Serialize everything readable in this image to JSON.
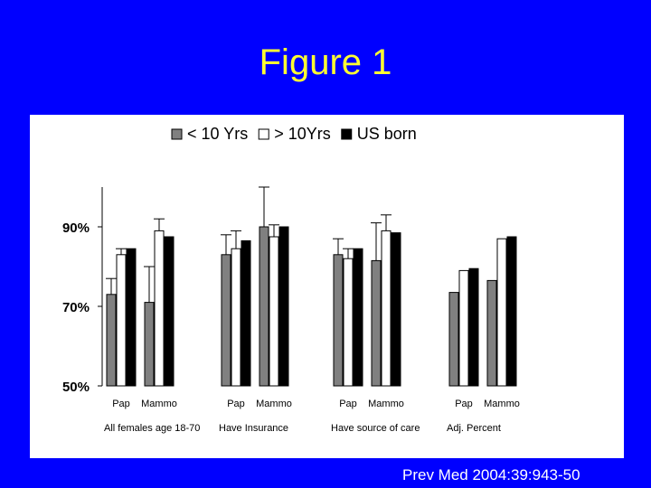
{
  "slide": {
    "title": "Figure 1",
    "citation": "Prev Med 2004:39:943-50"
  },
  "colors": {
    "background": "#0000ff",
    "title": "#ffff33",
    "panel": "#ffffff"
  },
  "chart_data": {
    "type": "bar",
    "title": "",
    "xlabel": "",
    "ylabel": "",
    "ylim": [
      0.5,
      1.0
    ],
    "yticks": [
      {
        "value": 0.9,
        "label": "90%"
      },
      {
        "value": 0.7,
        "label": "70%"
      },
      {
        "value": 0.5,
        "label": "50%"
      }
    ],
    "grid": false,
    "legend_position": "top-center",
    "series": [
      {
        "name": "< 10 Yrs",
        "color": "#808080"
      },
      {
        "name": "> 10Yrs",
        "color": "#ffffff"
      },
      {
        "name": "US born",
        "color": "#000000"
      }
    ],
    "groups": [
      {
        "label": "All females age 18-70",
        "subgroups": [
          {
            "label": "Pap",
            "values": [
              0.73,
              0.83,
              0.845
            ],
            "error_high": [
              0.77,
              0.845,
              null
            ]
          },
          {
            "label": "Mammo",
            "values": [
              0.71,
              0.89,
              0.875
            ],
            "error_high": [
              0.8,
              0.92,
              null
            ]
          }
        ]
      },
      {
        "label": "Have Insurance",
        "subgroups": [
          {
            "label": "Pap",
            "values": [
              0.83,
              0.845,
              0.865
            ],
            "error_high": [
              0.88,
              0.89,
              null
            ]
          },
          {
            "label": "Mammo",
            "values": [
              0.9,
              0.875,
              0.9
            ],
            "error_high": [
              1.0,
              0.905,
              null
            ]
          }
        ]
      },
      {
        "label": "Have source of care",
        "subgroups": [
          {
            "label": "Pap",
            "values": [
              0.83,
              0.82,
              0.845
            ],
            "error_high": [
              0.87,
              0.845,
              null
            ]
          },
          {
            "label": "Mammo",
            "values": [
              0.815,
              0.89,
              0.885
            ],
            "error_high": [
              0.91,
              0.93,
              null
            ]
          }
        ]
      },
      {
        "label": "Adj. Percent",
        "subgroups": [
          {
            "label": "Pap",
            "values": [
              0.735,
              0.79,
              0.795
            ],
            "error_high": [
              null,
              null,
              null
            ]
          },
          {
            "label": "Mammo",
            "values": [
              0.765,
              0.87,
              0.875
            ],
            "error_high": [
              null,
              null,
              null
            ]
          }
        ]
      }
    ]
  }
}
